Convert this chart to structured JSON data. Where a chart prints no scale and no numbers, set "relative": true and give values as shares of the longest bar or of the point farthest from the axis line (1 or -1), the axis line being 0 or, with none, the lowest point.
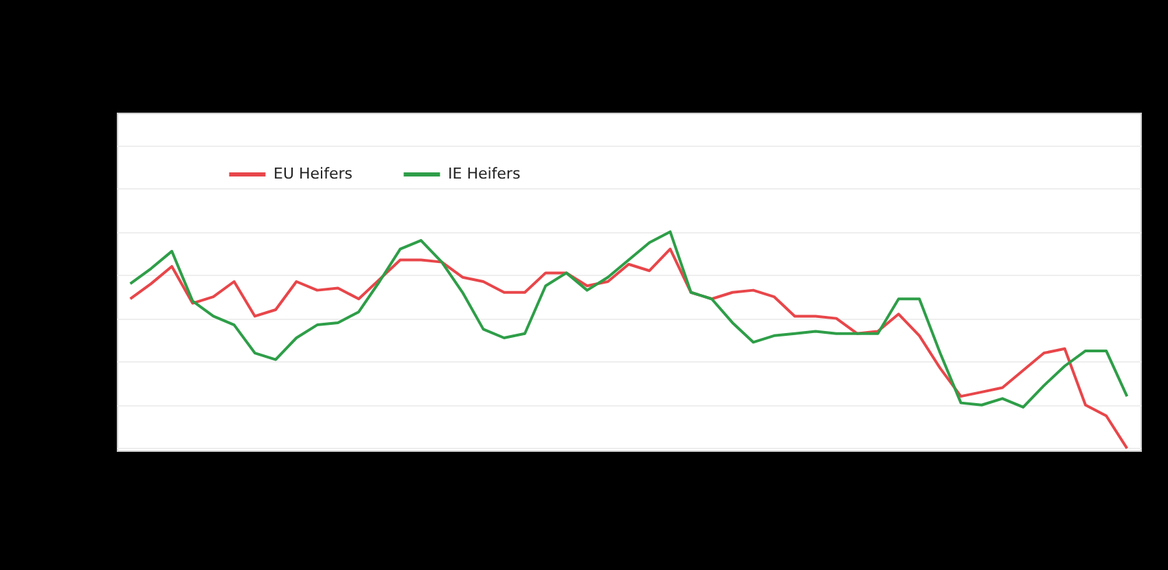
{
  "chart_data": {
    "type": "line",
    "relative": true,
    "grid": "y",
    "legend": "top left",
    "line_style": "solid",
    "marker": "none",
    "categories": [
      null,
      null,
      null,
      null,
      null,
      null,
      null,
      null,
      null,
      null,
      null,
      null,
      null,
      null,
      null,
      null,
      null,
      null,
      null,
      null,
      null,
      null,
      null,
      null,
      null,
      null,
      null,
      null,
      null,
      null,
      null,
      null,
      null,
      null,
      null,
      null,
      null,
      null,
      null,
      null,
      null,
      null,
      null,
      null,
      null,
      null,
      null,
      null,
      null
    ],
    "series": [
      {
        "name": "EU Heifers",
        "color": "#e8464a",
        "values": [
          0.69,
          0.76,
          0.84,
          0.67,
          0.7,
          0.77,
          0.61,
          0.64,
          0.77,
          0.73,
          0.74,
          0.69,
          0.78,
          0.87,
          0.87,
          0.86,
          0.79,
          0.77,
          0.72,
          0.72,
          0.81,
          0.81,
          0.75,
          0.77,
          0.85,
          0.82,
          0.92,
          0.72,
          0.69,
          0.72,
          0.73,
          0.7,
          0.61,
          0.61,
          0.6,
          0.53,
          0.54,
          0.62,
          0.52,
          0.37,
          0.24,
          0.26,
          0.28,
          0.36,
          0.44,
          0.46,
          0.2,
          0.15,
          0
        ]
      },
      {
        "name": "IE Heifers",
        "color": "#2e9e48",
        "values": [
          0.76,
          0.83,
          0.91,
          0.68,
          0.61,
          0.57,
          0.44,
          0.41,
          0.51,
          0.57,
          0.58,
          0.63,
          0.77,
          0.92,
          0.96,
          0.86,
          0.72,
          0.55,
          0.51,
          0.53,
          0.75,
          0.81,
          0.73,
          0.79,
          0.87,
          0.95,
          1,
          0.72,
          0.69,
          0.58,
          0.49,
          0.52,
          0.53,
          0.54,
          0.53,
          0.53,
          0.53,
          0.69,
          0.69,
          0.44,
          0.21,
          0.2,
          0.23,
          0.19,
          0.29,
          0.38,
          0.45,
          0.45,
          0.24
        ]
      }
    ]
  }
}
